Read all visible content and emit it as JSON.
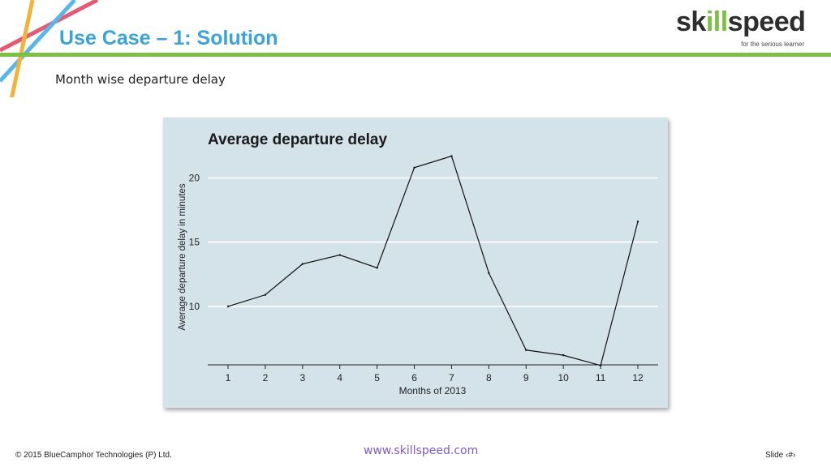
{
  "header": {
    "title": "Use Case – 1: Solution",
    "logo_prefix": "sk",
    "logo_accent": "ill",
    "logo_suffix": "speed",
    "logo_tagline": "for the serious learner"
  },
  "subtitle": "Month wise departure delay",
  "footer": {
    "copyright": "© 2015 BlueCamphor Technologies (P) Ltd.",
    "website": "www.skillspeed.com",
    "slide_label": "Slide ‹#›"
  },
  "colors": {
    "title_blue": "#3aa3dc",
    "rule_green": "#7cc043",
    "chart_bg": "#d4e2ea",
    "link_purple": "#7b5bc6"
  },
  "chart_data": {
    "type": "line",
    "title": "Average departure delay",
    "xlabel": "Months of 2013",
    "ylabel": "Average departure delay in minutes",
    "x": [
      1,
      2,
      3,
      4,
      5,
      6,
      7,
      8,
      9,
      10,
      11,
      12
    ],
    "categories": [
      "1",
      "2",
      "3",
      "4",
      "5",
      "6",
      "7",
      "8",
      "9",
      "10",
      "11",
      "12"
    ],
    "values": [
      10.0,
      10.9,
      13.3,
      14.0,
      13.0,
      20.8,
      21.7,
      12.6,
      6.6,
      6.2,
      5.4,
      16.6
    ],
    "yticks": [
      10,
      15,
      20
    ],
    "ylim": [
      5.45,
      22.3
    ],
    "grid": true
  }
}
